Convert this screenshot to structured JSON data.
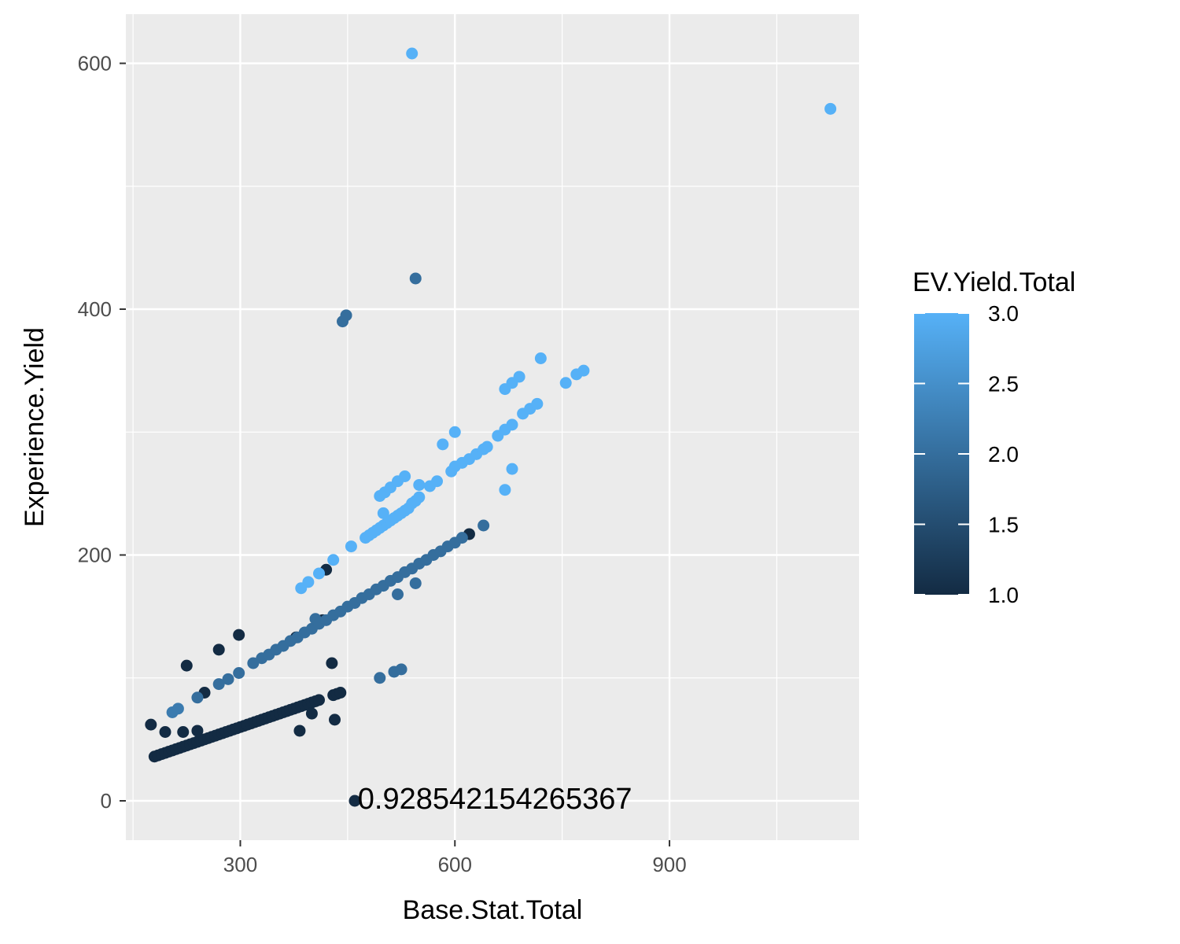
{
  "chart_data": {
    "type": "scatter",
    "title": "",
    "xlabel": "Base.Stat.Total",
    "ylabel": "Experience.Yield",
    "xlim": [
      140,
      1165
    ],
    "ylim": [
      -32,
      640
    ],
    "x_ticks": [
      300,
      600,
      900
    ],
    "x_tick_labels": [
      "300",
      "600",
      "900"
    ],
    "y_ticks": [
      0,
      200,
      400,
      600
    ],
    "y_tick_labels": [
      "0",
      "200",
      "400",
      "600"
    ],
    "grid": true,
    "annotation": {
      "text": "0.928542154265367",
      "x": 462,
      "y": 0
    },
    "legend": {
      "title": "EV.Yield.Total",
      "placement": "right",
      "type": "colorbar",
      "range": [
        1.0,
        3.0
      ],
      "breaks": [
        1.0,
        1.5,
        2.0,
        2.5,
        3.0
      ],
      "labels": [
        "1.0",
        "1.5",
        "2.0",
        "2.5",
        "3.0"
      ],
      "low_color": "#132B43",
      "high_color": "#56B1F7"
    },
    "points": [
      {
        "x": 180,
        "y": 36,
        "c": 1
      },
      {
        "x": 185,
        "y": 37,
        "c": 1
      },
      {
        "x": 190,
        "y": 38,
        "c": 1
      },
      {
        "x": 195,
        "y": 39,
        "c": 1
      },
      {
        "x": 200,
        "y": 40,
        "c": 1
      },
      {
        "x": 205,
        "y": 41,
        "c": 1
      },
      {
        "x": 210,
        "y": 42,
        "c": 1
      },
      {
        "x": 215,
        "y": 43,
        "c": 1
      },
      {
        "x": 220,
        "y": 44,
        "c": 1
      },
      {
        "x": 225,
        "y": 45,
        "c": 1
      },
      {
        "x": 230,
        "y": 46,
        "c": 1
      },
      {
        "x": 235,
        "y": 47,
        "c": 1
      },
      {
        "x": 240,
        "y": 48,
        "c": 1
      },
      {
        "x": 245,
        "y": 49,
        "c": 1
      },
      {
        "x": 250,
        "y": 50,
        "c": 1
      },
      {
        "x": 255,
        "y": 51,
        "c": 1
      },
      {
        "x": 260,
        "y": 52,
        "c": 1
      },
      {
        "x": 265,
        "y": 53,
        "c": 1
      },
      {
        "x": 270,
        "y": 54,
        "c": 1
      },
      {
        "x": 275,
        "y": 55,
        "c": 1
      },
      {
        "x": 280,
        "y": 56,
        "c": 1
      },
      {
        "x": 285,
        "y": 57,
        "c": 1
      },
      {
        "x": 290,
        "y": 58,
        "c": 1
      },
      {
        "x": 295,
        "y": 59,
        "c": 1
      },
      {
        "x": 300,
        "y": 60,
        "c": 1
      },
      {
        "x": 305,
        "y": 61,
        "c": 1
      },
      {
        "x": 310,
        "y": 62,
        "c": 1
      },
      {
        "x": 315,
        "y": 63,
        "c": 1
      },
      {
        "x": 320,
        "y": 64,
        "c": 1
      },
      {
        "x": 325,
        "y": 65,
        "c": 1
      },
      {
        "x": 330,
        "y": 66,
        "c": 1
      },
      {
        "x": 335,
        "y": 67,
        "c": 1
      },
      {
        "x": 340,
        "y": 68,
        "c": 1
      },
      {
        "x": 345,
        "y": 69,
        "c": 1
      },
      {
        "x": 350,
        "y": 70,
        "c": 1
      },
      {
        "x": 355,
        "y": 71,
        "c": 1
      },
      {
        "x": 360,
        "y": 72,
        "c": 1
      },
      {
        "x": 365,
        "y": 73,
        "c": 1
      },
      {
        "x": 370,
        "y": 74,
        "c": 1
      },
      {
        "x": 375,
        "y": 75,
        "c": 1
      },
      {
        "x": 380,
        "y": 76,
        "c": 1
      },
      {
        "x": 385,
        "y": 77,
        "c": 1
      },
      {
        "x": 390,
        "y": 78,
        "c": 1
      },
      {
        "x": 395,
        "y": 79,
        "c": 1
      },
      {
        "x": 400,
        "y": 80,
        "c": 1
      },
      {
        "x": 405,
        "y": 81,
        "c": 1
      },
      {
        "x": 410,
        "y": 82,
        "c": 1
      },
      {
        "x": 430,
        "y": 86,
        "c": 1
      },
      {
        "x": 435,
        "y": 87,
        "c": 1
      },
      {
        "x": 440,
        "y": 88,
        "c": 1
      },
      {
        "x": 175,
        "y": 62,
        "c": 1
      },
      {
        "x": 195,
        "y": 56,
        "c": 1
      },
      {
        "x": 220,
        "y": 56,
        "c": 1
      },
      {
        "x": 240,
        "y": 57,
        "c": 1
      },
      {
        "x": 225,
        "y": 110,
        "c": 1
      },
      {
        "x": 250,
        "y": 88,
        "c": 1
      },
      {
        "x": 270,
        "y": 123,
        "c": 1
      },
      {
        "x": 298,
        "y": 135,
        "c": 1
      },
      {
        "x": 383,
        "y": 57,
        "c": 1
      },
      {
        "x": 400,
        "y": 71,
        "c": 1
      },
      {
        "x": 432,
        "y": 66,
        "c": 1
      },
      {
        "x": 428,
        "y": 112,
        "c": 1
      },
      {
        "x": 420,
        "y": 188,
        "c": 1
      },
      {
        "x": 460,
        "y": 0,
        "c": 1
      },
      {
        "x": 620,
        "y": 217,
        "c": 1
      },
      {
        "x": 415,
        "y": 147,
        "c": 1
      },
      {
        "x": 378,
        "y": 133,
        "c": 1
      },
      {
        "x": 205,
        "y": 72,
        "c": 2.2
      },
      {
        "x": 213,
        "y": 75,
        "c": 2.2
      },
      {
        "x": 240,
        "y": 84,
        "c": 2
      },
      {
        "x": 270,
        "y": 95,
        "c": 2
      },
      {
        "x": 283,
        "y": 99,
        "c": 2
      },
      {
        "x": 298,
        "y": 104,
        "c": 2
      },
      {
        "x": 318,
        "y": 112,
        "c": 2
      },
      {
        "x": 330,
        "y": 116,
        "c": 2
      },
      {
        "x": 340,
        "y": 119,
        "c": 2
      },
      {
        "x": 350,
        "y": 123,
        "c": 2
      },
      {
        "x": 360,
        "y": 126,
        "c": 2
      },
      {
        "x": 370,
        "y": 130,
        "c": 2
      },
      {
        "x": 380,
        "y": 133,
        "c": 2
      },
      {
        "x": 390,
        "y": 137,
        "c": 2
      },
      {
        "x": 400,
        "y": 140,
        "c": 2
      },
      {
        "x": 405,
        "y": 148,
        "c": 2
      },
      {
        "x": 410,
        "y": 144,
        "c": 2
      },
      {
        "x": 420,
        "y": 147,
        "c": 2
      },
      {
        "x": 430,
        "y": 151,
        "c": 2
      },
      {
        "x": 440,
        "y": 154,
        "c": 2
      },
      {
        "x": 450,
        "y": 158,
        "c": 2
      },
      {
        "x": 460,
        "y": 161,
        "c": 2
      },
      {
        "x": 470,
        "y": 165,
        "c": 2
      },
      {
        "x": 480,
        "y": 168,
        "c": 2
      },
      {
        "x": 490,
        "y": 172,
        "c": 2
      },
      {
        "x": 500,
        "y": 175,
        "c": 2
      },
      {
        "x": 510,
        "y": 179,
        "c": 2
      },
      {
        "x": 520,
        "y": 182,
        "c": 2
      },
      {
        "x": 530,
        "y": 186,
        "c": 2
      },
      {
        "x": 540,
        "y": 189,
        "c": 2
      },
      {
        "x": 550,
        "y": 193,
        "c": 2
      },
      {
        "x": 560,
        "y": 196,
        "c": 2
      },
      {
        "x": 570,
        "y": 200,
        "c": 2
      },
      {
        "x": 580,
        "y": 203,
        "c": 2
      },
      {
        "x": 590,
        "y": 207,
        "c": 2
      },
      {
        "x": 600,
        "y": 210,
        "c": 2
      },
      {
        "x": 610,
        "y": 214,
        "c": 2
      },
      {
        "x": 640,
        "y": 224,
        "c": 2
      },
      {
        "x": 520,
        "y": 168,
        "c": 2
      },
      {
        "x": 545,
        "y": 177,
        "c": 2
      },
      {
        "x": 495,
        "y": 100,
        "c": 2
      },
      {
        "x": 515,
        "y": 105,
        "c": 2
      },
      {
        "x": 525,
        "y": 107,
        "c": 2
      },
      {
        "x": 443,
        "y": 390,
        "c": 2
      },
      {
        "x": 448,
        "y": 395,
        "c": 2
      },
      {
        "x": 545,
        "y": 425,
        "c": 2
      },
      {
        "x": 385,
        "y": 173,
        "c": 3
      },
      {
        "x": 395,
        "y": 178,
        "c": 3
      },
      {
        "x": 410,
        "y": 185,
        "c": 3
      },
      {
        "x": 430,
        "y": 196,
        "c": 3
      },
      {
        "x": 455,
        "y": 207,
        "c": 3
      },
      {
        "x": 475,
        "y": 214,
        "c": 3
      },
      {
        "x": 480,
        "y": 216,
        "c": 3
      },
      {
        "x": 485,
        "y": 218,
        "c": 3
      },
      {
        "x": 490,
        "y": 220,
        "c": 3
      },
      {
        "x": 495,
        "y": 222,
        "c": 3
      },
      {
        "x": 500,
        "y": 224,
        "c": 3
      },
      {
        "x": 505,
        "y": 226,
        "c": 3
      },
      {
        "x": 510,
        "y": 228,
        "c": 3
      },
      {
        "x": 515,
        "y": 230,
        "c": 3
      },
      {
        "x": 520,
        "y": 232,
        "c": 3
      },
      {
        "x": 525,
        "y": 234,
        "c": 3
      },
      {
        "x": 530,
        "y": 236,
        "c": 3
      },
      {
        "x": 535,
        "y": 238,
        "c": 3
      },
      {
        "x": 540,
        "y": 242,
        "c": 3
      },
      {
        "x": 545,
        "y": 244,
        "c": 3
      },
      {
        "x": 550,
        "y": 247,
        "c": 3
      },
      {
        "x": 500,
        "y": 234,
        "c": 3
      },
      {
        "x": 495,
        "y": 248,
        "c": 3
      },
      {
        "x": 502,
        "y": 251,
        "c": 3
      },
      {
        "x": 510,
        "y": 255,
        "c": 3
      },
      {
        "x": 520,
        "y": 260,
        "c": 3
      },
      {
        "x": 530,
        "y": 264,
        "c": 3
      },
      {
        "x": 550,
        "y": 257,
        "c": 3
      },
      {
        "x": 565,
        "y": 256,
        "c": 3
      },
      {
        "x": 575,
        "y": 260,
        "c": 3
      },
      {
        "x": 583,
        "y": 290,
        "c": 3
      },
      {
        "x": 600,
        "y": 300,
        "c": 3
      },
      {
        "x": 595,
        "y": 268,
        "c": 3
      },
      {
        "x": 600,
        "y": 272,
        "c": 3
      },
      {
        "x": 610,
        "y": 275,
        "c": 3
      },
      {
        "x": 620,
        "y": 278,
        "c": 3
      },
      {
        "x": 630,
        "y": 282,
        "c": 3
      },
      {
        "x": 640,
        "y": 286,
        "c": 3
      },
      {
        "x": 645,
        "y": 288,
        "c": 3
      },
      {
        "x": 660,
        "y": 297,
        "c": 3
      },
      {
        "x": 670,
        "y": 302,
        "c": 3
      },
      {
        "x": 680,
        "y": 306,
        "c": 3
      },
      {
        "x": 670,
        "y": 253,
        "c": 3
      },
      {
        "x": 680,
        "y": 270,
        "c": 3
      },
      {
        "x": 695,
        "y": 315,
        "c": 3
      },
      {
        "x": 705,
        "y": 319,
        "c": 3
      },
      {
        "x": 715,
        "y": 323,
        "c": 3
      },
      {
        "x": 670,
        "y": 335,
        "c": 3
      },
      {
        "x": 680,
        "y": 340,
        "c": 3
      },
      {
        "x": 690,
        "y": 345,
        "c": 3
      },
      {
        "x": 720,
        "y": 360,
        "c": 3
      },
      {
        "x": 755,
        "y": 340,
        "c": 3
      },
      {
        "x": 770,
        "y": 347,
        "c": 3
      },
      {
        "x": 780,
        "y": 350,
        "c": 3
      },
      {
        "x": 540,
        "y": 608,
        "c": 3
      },
      {
        "x": 1125,
        "y": 563,
        "c": 3
      }
    ]
  }
}
